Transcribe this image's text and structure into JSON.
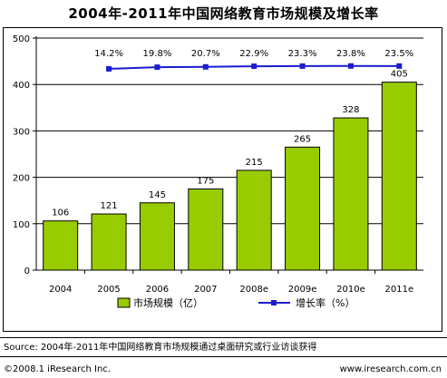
{
  "chart_data": {
    "type": "bar",
    "title": "2004年-2011年中国网络教育市场规模及增长率",
    "categories": [
      "2004",
      "2005",
      "2006",
      "2007",
      "2008e",
      "2009e",
      "2010e",
      "2011e"
    ],
    "series": [
      {
        "name": "市场规模（亿）",
        "type": "bar",
        "values": [
          106,
          121,
          145,
          175,
          215,
          265,
          328,
          405
        ],
        "data_labels": [
          "106",
          "121",
          "145",
          "175",
          "215",
          "265",
          "328",
          "405"
        ],
        "color": "#99cc00"
      },
      {
        "name": "增长率（%）",
        "type": "line",
        "values": [
          null,
          14.2,
          19.8,
          20.7,
          22.9,
          23.3,
          23.8,
          23.5
        ],
        "data_labels": [
          "",
          "14.2%",
          "19.8%",
          "20.7%",
          "22.9%",
          "23.3%",
          "23.8%",
          "23.5%"
        ],
        "color": "#1c1ccf"
      }
    ],
    "y_ticks": [
      "0",
      "100",
      "200",
      "300",
      "400",
      "500"
    ],
    "ylim": [
      0,
      500
    ],
    "grid": true,
    "legend_position": "bottom"
  },
  "source": "Source:  2004年-2011年中国网络教育市场规模通过桌面研究或行业访谈获得",
  "footer": {
    "copyright": "©2008.1 iResearch Inc.",
    "website": "www.iresearch.com.cn"
  }
}
